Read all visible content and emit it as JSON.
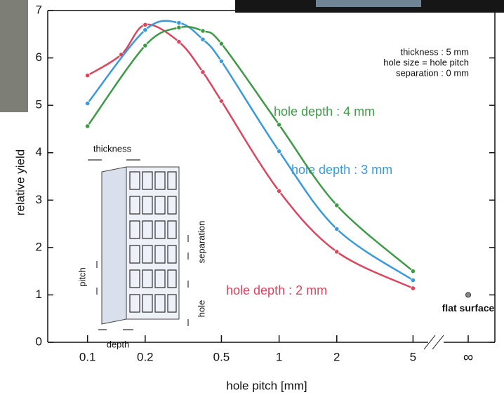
{
  "chart_data": {
    "type": "line",
    "y_label": "relative yield",
    "x_label": "hole pitch [mm]",
    "log_x": true,
    "x": [
      0.1,
      0.15,
      0.2,
      0.3,
      0.4,
      0.5,
      1,
      2,
      5
    ],
    "series": [
      {
        "name": "hole depth : 2 mm",
        "color": "#d9475f",
        "values": [
          5.63,
          6.07,
          6.7,
          6.34,
          5.7,
          5.09,
          3.19,
          1.91,
          1.14
        ]
      },
      {
        "name": "hole depth : 3 mm",
        "color": "#3a9ad9",
        "values": [
          5.04,
          null,
          6.59,
          6.74,
          6.39,
          5.93,
          4.03,
          2.39,
          1.31
        ]
      },
      {
        "name": "hole depth : 4 mm",
        "color": "#3f9a48",
        "values": [
          4.56,
          null,
          6.26,
          6.64,
          6.57,
          6.3,
          4.59,
          2.89,
          1.5
        ]
      }
    ],
    "xlim": [
      0.062,
      6.0
    ],
    "xticks": [
      0.1,
      0.2,
      0.5,
      1,
      2,
      5
    ],
    "ylim": [
      0,
      7
    ],
    "yticks": [
      0,
      1,
      2,
      3,
      4,
      5,
      6,
      7
    ],
    "flat_surface": {
      "label": "flat surface",
      "x_label": "∞",
      "value": 1,
      "color": "#888888"
    },
    "annotations": [
      "thickness :   5 mm",
      "hole size = hole pitch",
      "separation :   0 mm"
    ],
    "diagram_labels": {
      "thickness": "thickness",
      "pitch": "pitch",
      "depth": "depth",
      "separation": "separation",
      "hole": "hole"
    }
  }
}
